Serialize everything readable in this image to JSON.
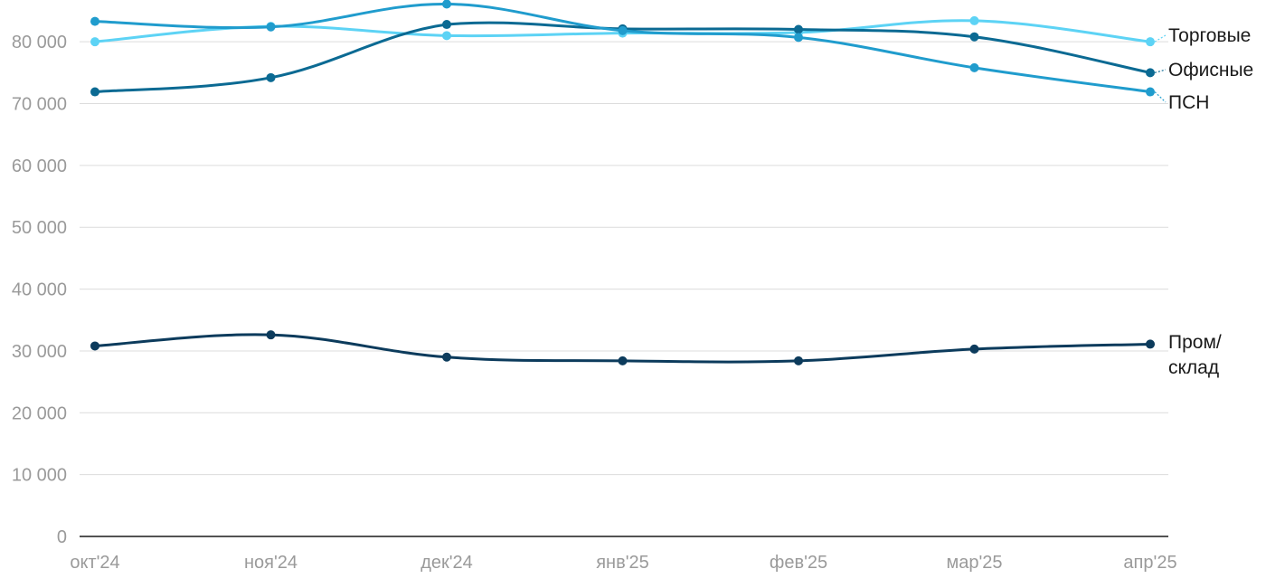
{
  "chart_data": {
    "type": "line",
    "categories": [
      "окт'24",
      "ноя'24",
      "дек'24",
      "янв'25",
      "фев'25",
      "мар'25",
      "апр'25"
    ],
    "ylim": [
      0,
      85000
    ],
    "yticks": [
      0,
      10000,
      20000,
      30000,
      40000,
      50000,
      60000,
      70000,
      80000
    ],
    "ytick_labels": [
      "0",
      "10 000",
      "20 000",
      "30 000",
      "40 000",
      "50 000",
      "60 000",
      "70 000",
      "80 000"
    ],
    "grid": true,
    "legend": "inline-right",
    "series": [
      {
        "name": "Торговые",
        "label_lines": [
          "Торговые"
        ],
        "color": "#5dd3f5",
        "values": [
          80000,
          82500,
          81000,
          81400,
          81500,
          83400,
          80000
        ]
      },
      {
        "name": "Офисные",
        "label_lines": [
          "Офисные"
        ],
        "color": "#0b6a93",
        "values": [
          71900,
          74200,
          82800,
          82100,
          82000,
          80800,
          75000
        ]
      },
      {
        "name": "ПСН",
        "label_lines": [
          "ПСН"
        ],
        "color": "#209ccd",
        "values": [
          83300,
          82400,
          86100,
          81800,
          80700,
          75800,
          71900
        ]
      },
      {
        "name": "Пром/склад",
        "label_lines": [
          "Пром/",
          "склад"
        ],
        "color": "#0c3b5c",
        "values": [
          30800,
          32600,
          29000,
          28400,
          28400,
          30300,
          31100
        ]
      }
    ]
  }
}
